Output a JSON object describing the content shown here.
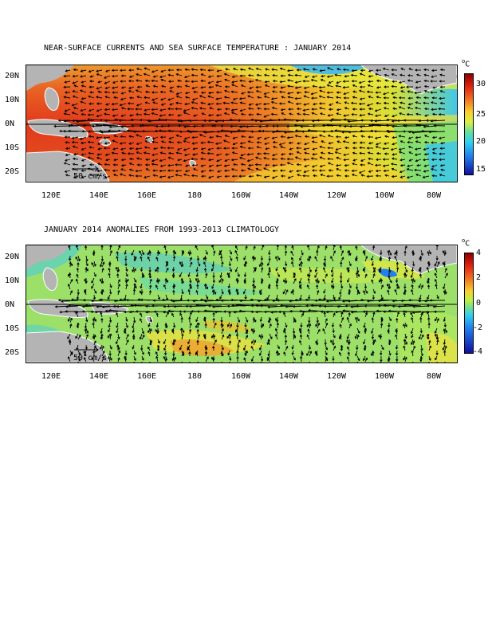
{
  "panel1": {
    "title": "NEAR-SURFACE CURRENTS AND SEA SURFACE TEMPERATURE : JANUARY 2014",
    "unit_degree": "o",
    "unit": "C",
    "colorbar_ticks": [
      "30",
      "25",
      "20",
      "15"
    ],
    "scale_label": "50 cm/s"
  },
  "panel2": {
    "title": "JANUARY 2014 ANOMALIES FROM 1993-2013 CLIMATOLOGY",
    "unit_degree": "o",
    "unit": "C",
    "colorbar_ticks": [
      "4",
      "2",
      "0",
      "-2",
      "-4"
    ],
    "scale_label": "50 cm/s"
  },
  "lat_labels": [
    "20N",
    "10N",
    "0N",
    "10S",
    "20S"
  ],
  "lon_labels": [
    "120E",
    "140E",
    "160E",
    "180",
    "160W",
    "140W",
    "120W",
    "100W",
    "80W"
  ],
  "colors": {
    "land": "#b4b4b4",
    "sst_warm": "#e8321e",
    "anomaly_neutral": "#9ce06a"
  }
}
